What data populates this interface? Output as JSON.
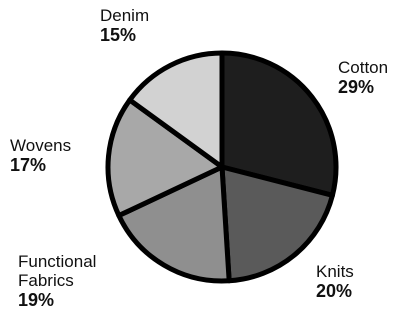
{
  "chart_data": {
    "type": "pie",
    "title": "",
    "start_angle_deg": 0,
    "direction": "clockwise",
    "slices": [
      {
        "label": "Cotton",
        "value_label": "29%",
        "value": 29,
        "color": "#1e1e1e"
      },
      {
        "label": "Knits",
        "value_label": "20%",
        "value": 20,
        "color": "#5a5a5a"
      },
      {
        "label": "Functional Fabrics",
        "value_label": "19%",
        "value": 19,
        "color": "#8f8f8f"
      },
      {
        "label": "Wovens",
        "value_label": "17%",
        "value": 17,
        "color": "#a8a8a8"
      },
      {
        "label": "Denim",
        "value_label": "15%",
        "value": 15,
        "color": "#d2d2d2"
      }
    ],
    "separator_color": "#000000"
  }
}
